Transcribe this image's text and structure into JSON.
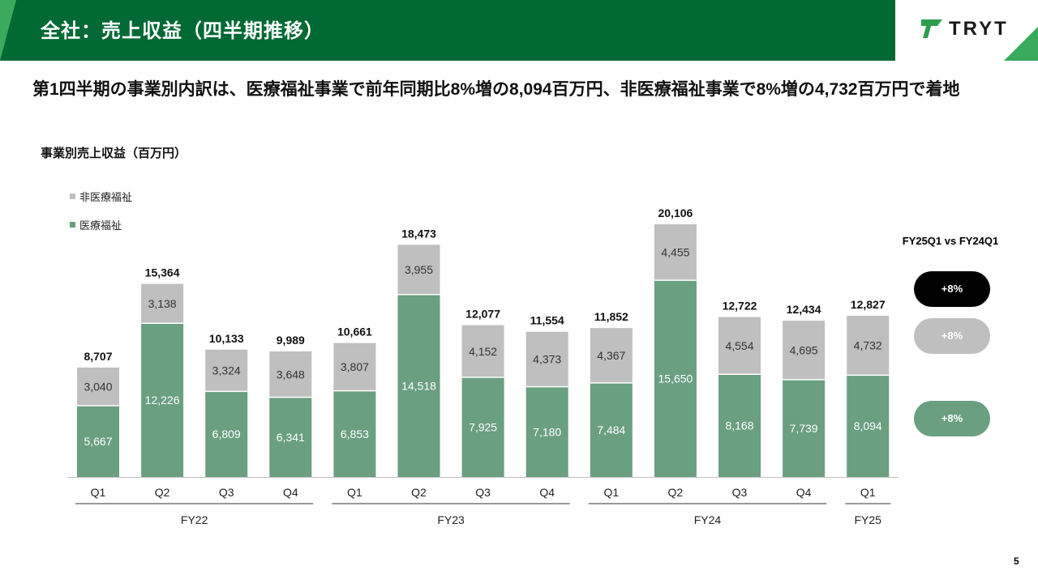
{
  "header": {
    "title": "全社：売上収益（四半期推移）",
    "logo_text": "TRYT"
  },
  "headline": "第1四半期の事業別内訳は、医療福祉事業で前年同期比8%増の8,094百万円、非医療福祉事業で8%増の4,732百万円で着地",
  "colors": {
    "brand": "#006934",
    "accent": "#3aaa5c",
    "medical": "#6a9f80",
    "nonmedical": "#bfbfbf"
  },
  "chart_data": {
    "type": "bar",
    "stacked": true,
    "title": "事業別売上収益（百万円）",
    "categories": [
      "Q1",
      "Q2",
      "Q3",
      "Q4",
      "Q1",
      "Q2",
      "Q3",
      "Q4",
      "Q1",
      "Q2",
      "Q3",
      "Q4",
      "Q1"
    ],
    "groups": [
      {
        "label": "FY22",
        "start": 0,
        "end": 3
      },
      {
        "label": "FY23",
        "start": 4,
        "end": 7
      },
      {
        "label": "FY24",
        "start": 8,
        "end": 11
      },
      {
        "label": "FY25",
        "start": 12,
        "end": 12
      }
    ],
    "series": [
      {
        "name": "医療福祉",
        "values": [
          5667,
          12226,
          6809,
          6341,
          6853,
          14518,
          7925,
          7180,
          7484,
          15650,
          8168,
          7739,
          8094
        ]
      },
      {
        "name": "非医療福祉",
        "values": [
          3040,
          3138,
          3324,
          3648,
          3807,
          3955,
          4152,
          4373,
          4367,
          4455,
          4554,
          4695,
          4732
        ]
      }
    ],
    "totals": [
      8707,
      15364,
      10133,
      9989,
      10661,
      18473,
      12077,
      11554,
      11852,
      20106,
      12722,
      12434,
      12827
    ],
    "legend": [
      "非医療福祉",
      "医療福祉"
    ],
    "legend_position": "top-left",
    "grid": false
  },
  "comparison": {
    "title": "FY25Q1 vs FY24Q1",
    "total": "+8%",
    "nonmedical": "+8%",
    "medical": "+8%"
  },
  "page_number": "5"
}
